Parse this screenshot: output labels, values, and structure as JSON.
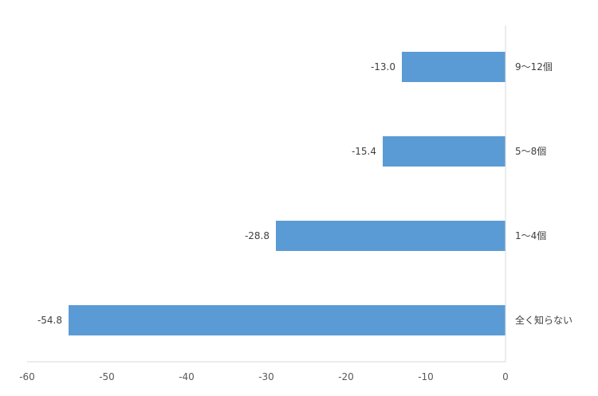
{
  "chart_data": {
    "type": "bar",
    "orientation": "horizontal",
    "categories": [
      "9〜12個",
      "5〜8個",
      "1〜4個",
      "全く知らない"
    ],
    "values": [
      -13.0,
      -15.4,
      -28.8,
      -54.8
    ],
    "value_labels": [
      "-13.0",
      "-15.4",
      "-28.8",
      "-54.8"
    ],
    "xlim": [
      -60,
      0
    ],
    "x_ticks": [
      -60,
      -50,
      -40,
      -30,
      -20,
      -10,
      0
    ],
    "x_tick_labels": [
      "-60",
      "-50",
      "-40",
      "-30",
      "-20",
      "-10",
      "0"
    ],
    "category_axis_position": "right",
    "grid": false,
    "legend": "none",
    "colors": {
      "bar": "#5B9BD5",
      "axis": "#D9D9D9",
      "text": "#595959"
    }
  }
}
